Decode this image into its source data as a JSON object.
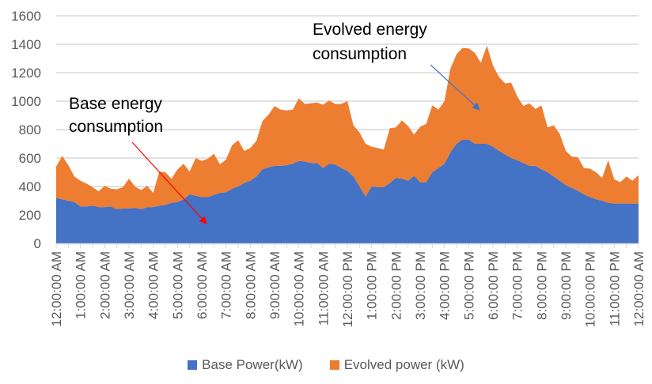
{
  "chart_data": {
    "type": "area",
    "stacked": true,
    "title": "",
    "xlabel": "",
    "ylabel": "",
    "ylim": [
      0,
      1600
    ],
    "yticks": [
      0,
      200,
      400,
      600,
      800,
      1000,
      1200,
      1400,
      1600
    ],
    "grid": true,
    "legend_position": "bottom",
    "x_tick_labels": [
      "12:00:00 AM",
      "1:00:00 AM",
      "2:00:00 AM",
      "3:00:00 AM",
      "4:00:00 AM",
      "5:00:00 AM",
      "6:00:00 AM",
      "7:00:00 AM",
      "8:00:00 AM",
      "9:00:00 AM",
      "10:00:00 AM",
      "11:00:00 AM",
      "12:00:00 PM",
      "1:00:00 PM",
      "2:00:00 PM",
      "3:00:00 PM",
      "4:00:00 PM",
      "5:00:00 PM",
      "6:00:00 PM",
      "7:00:00 PM",
      "8:00:00 PM",
      "9:00:00 PM",
      "10:00:00 PM",
      "11:00:00 PM",
      "12:00:00 AM"
    ],
    "x_interval_minutes": 15,
    "series": [
      {
        "name": "Base Power(kW)",
        "color": "#4472c4",
        "values": [
          320,
          310,
          300,
          290,
          260,
          260,
          265,
          255,
          255,
          260,
          240,
          245,
          245,
          250,
          240,
          255,
          255,
          265,
          270,
          285,
          290,
          310,
          345,
          335,
          325,
          325,
          340,
          355,
          360,
          385,
          400,
          425,
          440,
          470,
          520,
          535,
          545,
          545,
          550,
          560,
          580,
          575,
          565,
          565,
          530,
          560,
          555,
          530,
          510,
          470,
          400,
          330,
          400,
          395,
          395,
          425,
          460,
          455,
          440,
          475,
          430,
          430,
          500,
          530,
          560,
          640,
          700,
          730,
          730,
          700,
          700,
          700,
          680,
          650,
          625,
          600,
          585,
          565,
          545,
          545,
          520,
          500,
          470,
          440,
          410,
          390,
          370,
          345,
          325,
          310,
          300,
          285,
          280,
          280,
          280,
          280,
          280
        ]
      },
      {
        "name": "Evolved power (kW)",
        "color": "#ed7d31",
        "values": [
          220,
          305,
          250,
          180,
          180,
          160,
          130,
          110,
          150,
          125,
          140,
          150,
          210,
          150,
          135,
          150,
          100,
          240,
          230,
          170,
          230,
          250,
          160,
          265,
          255,
          270,
          290,
          200,
          230,
          305,
          325,
          225,
          230,
          250,
          340,
          370,
          420,
          395,
          385,
          380,
          440,
          405,
          420,
          425,
          445,
          445,
          425,
          450,
          490,
          360,
          380,
          370,
          280,
          275,
          265,
          385,
          355,
          410,
          385,
          290,
          390,
          410,
          470,
          410,
          440,
          590,
          630,
          645,
          640,
          640,
          570,
          690,
          570,
          520,
          500,
          530,
          450,
          400,
          440,
          400,
          450,
          315,
          360,
          330,
          240,
          220,
          235,
          185,
          200,
          190,
          160,
          300,
          170,
          150,
          190,
          160,
          200
        ]
      }
    ],
    "annotations": [
      {
        "text_lines": [
          "Base energy",
          "consumption"
        ],
        "arrow_color": "#ff0000",
        "points_to": "Base Power(kW) around 6:00 AM"
      },
      {
        "text_lines": [
          "Evolved energy",
          "consumption"
        ],
        "arrow_color": "#4472c4",
        "points_to": "Evolved power (kW) around 5:15 PM"
      }
    ]
  },
  "legend": [
    {
      "label": "Base Power(kW)",
      "color": "#4472c4"
    },
    {
      "label": "Evolved power (kW)",
      "color": "#ed7d31"
    }
  ]
}
